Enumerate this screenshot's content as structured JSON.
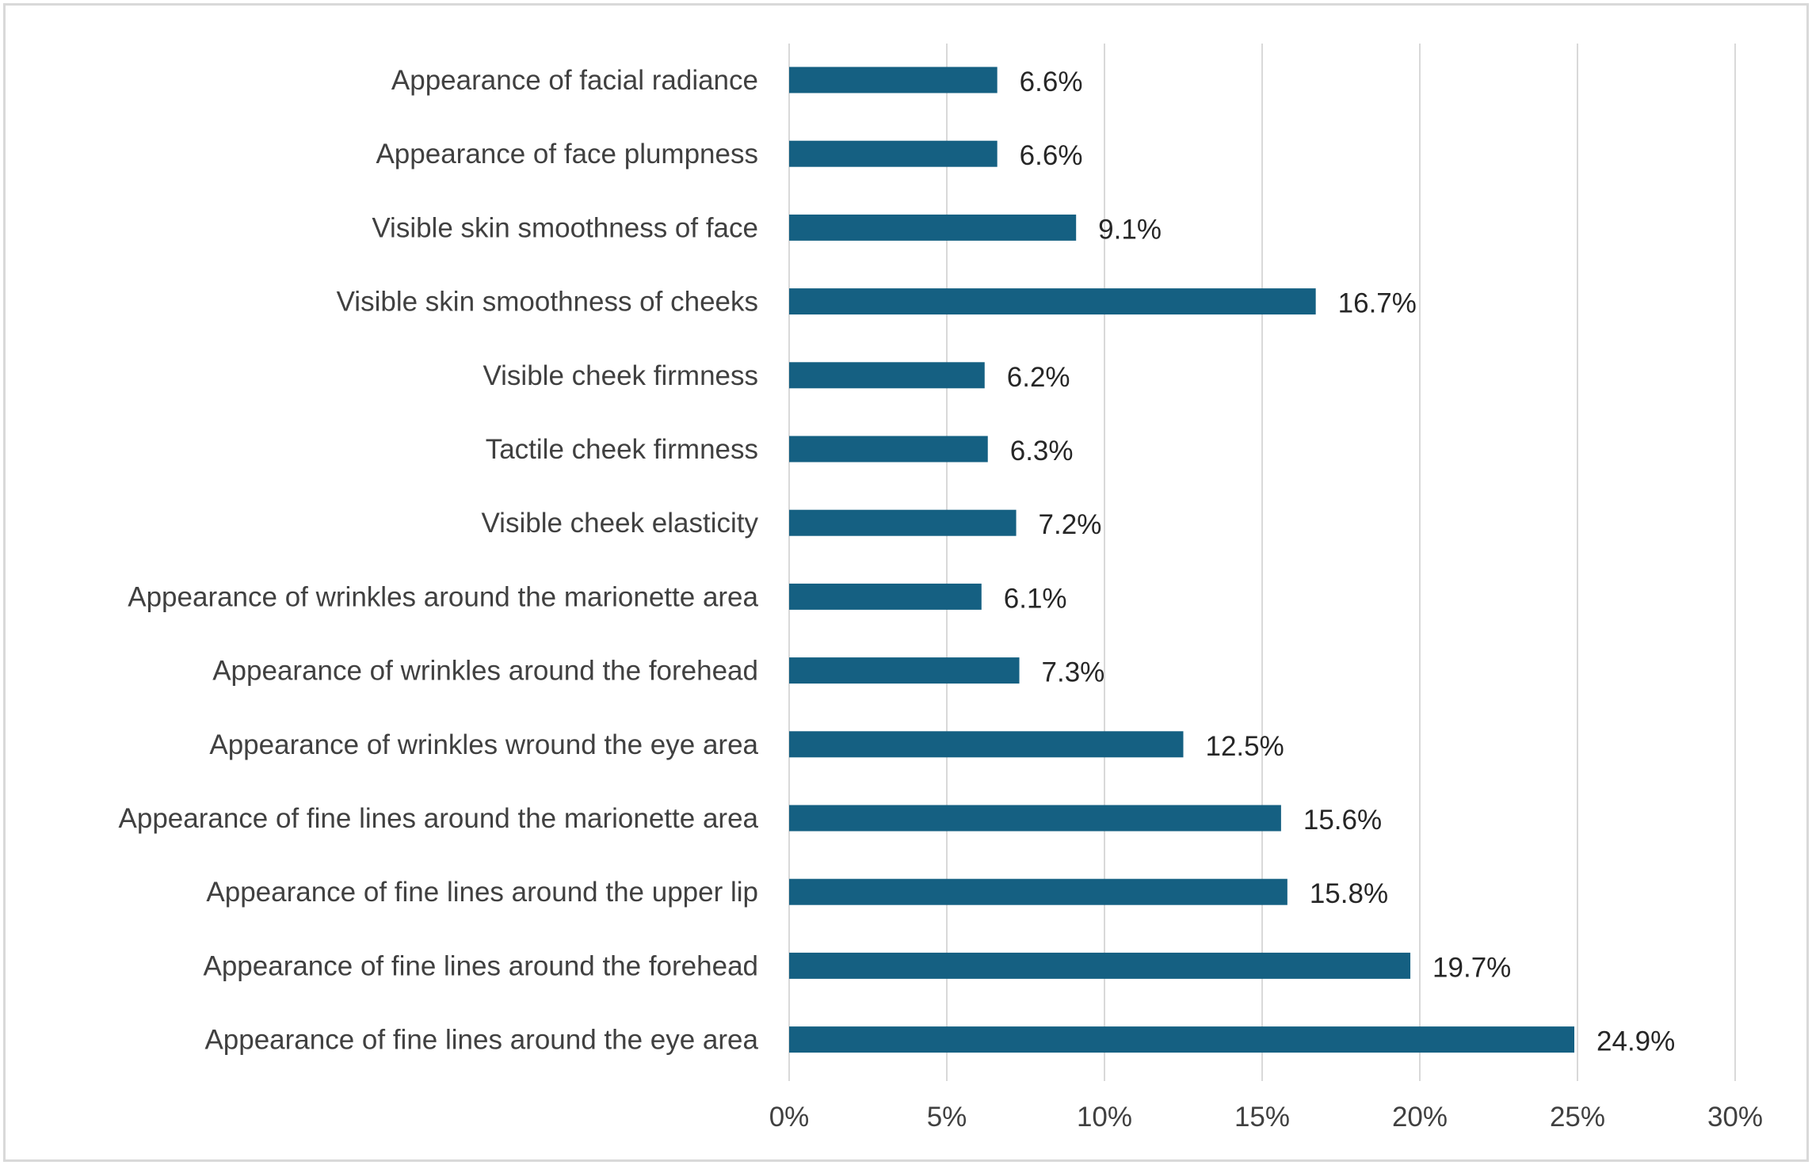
{
  "chart_data": {
    "type": "bar",
    "orientation": "horizontal",
    "categories": [
      "Appearance of facial radiance",
      "Appearance of face plumpness",
      "Visible skin smoothness of face",
      "Visible skin smoothness of cheeks",
      "Visible cheek firmness",
      "Tactile cheek firmness",
      "Visible cheek elasticity",
      "Appearance of wrinkles around the marionette area",
      "Appearance of wrinkles around the forehead",
      "Appearance of wrinkles wround the eye area",
      "Appearance of fine lines around the marionette area",
      "Appearance of fine lines around the upper lip",
      "Appearance of fine lines around the forehead",
      "Appearance of fine lines around the eye area"
    ],
    "values": [
      6.6,
      6.6,
      9.1,
      16.7,
      6.2,
      6.3,
      7.2,
      6.1,
      7.3,
      12.5,
      15.6,
      15.8,
      19.7,
      24.9
    ],
    "data_labels": [
      "6.6%",
      "6.6%",
      "9.1%",
      "16.7%",
      "6.2%",
      "6.3%",
      "7.2%",
      "6.1%",
      "7.3%",
      "12.5%",
      "15.6%",
      "15.8%",
      "19.7%",
      "24.9%"
    ],
    "xlim": [
      0,
      30
    ],
    "x_ticks": [
      0,
      5,
      10,
      15,
      20,
      25,
      30
    ],
    "x_tick_labels": [
      "0%",
      "5%",
      "10%",
      "15%",
      "20%",
      "25%",
      "30%"
    ],
    "title": "",
    "xlabel": "",
    "ylabel": "",
    "grid": "vertical",
    "legend": "none",
    "colors": {
      "bar": "#156082",
      "gridline": "#d9d9d9",
      "label_text": "#404040",
      "value_text": "#262626",
      "border": "#d9d9d9"
    }
  }
}
